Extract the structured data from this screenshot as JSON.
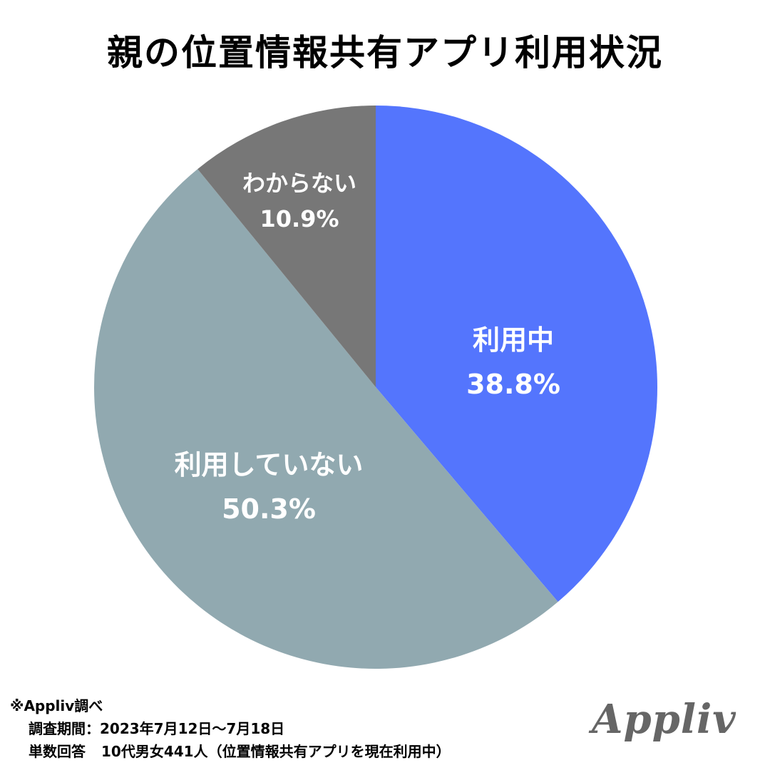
{
  "chart_data": {
    "type": "pie",
    "title": "親の位置情報共有アプリ利用状況",
    "start_angle_deg": 0,
    "direction": "clockwise",
    "legend": "none",
    "slices": [
      {
        "name": "利用中",
        "value": 38.8,
        "label": "38.8%",
        "color": "#5475fd"
      },
      {
        "name": "利用していない",
        "value": 50.3,
        "label": "50.3%",
        "color": "#91a9b0"
      },
      {
        "name": "わからない",
        "value": 10.9,
        "label": "10.9%",
        "color": "#777777"
      }
    ]
  },
  "footer": {
    "source": "※Appliv調べ",
    "period_label": "調査期間：",
    "period_value": "2023年7月12日〜7月18日",
    "sample_label": "単数回答",
    "sample_value": "10代男女441人（位置情報共有アプリを現在利用中）"
  },
  "logo": {
    "text": "Appliv"
  }
}
